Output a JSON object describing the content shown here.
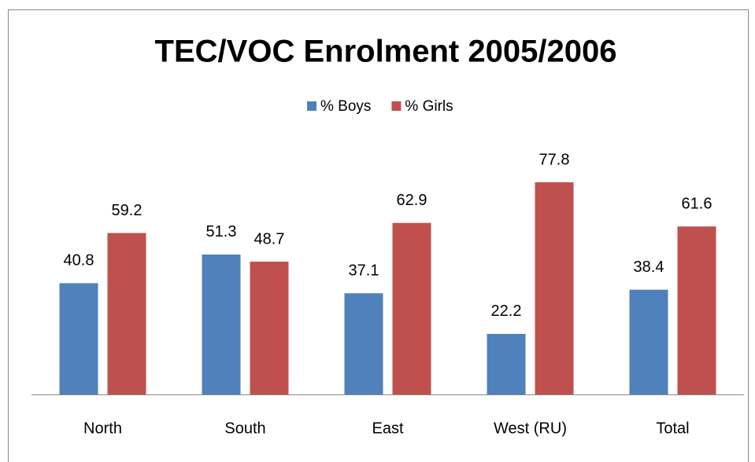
{
  "chart_data": {
    "type": "bar",
    "title": "TEC/VOC Enrolment 2005/2006",
    "categories": [
      "North",
      "South",
      "East",
      "West (RU)",
      "Total"
    ],
    "series": [
      {
        "name": "% Boys",
        "color": "#4f81bd",
        "values": [
          40.8,
          51.3,
          37.1,
          22.2,
          38.4
        ]
      },
      {
        "name": "% Girls",
        "color": "#c0504d",
        "values": [
          59.2,
          48.7,
          62.9,
          77.8,
          61.6
        ]
      }
    ],
    "legend": "top"
  }
}
